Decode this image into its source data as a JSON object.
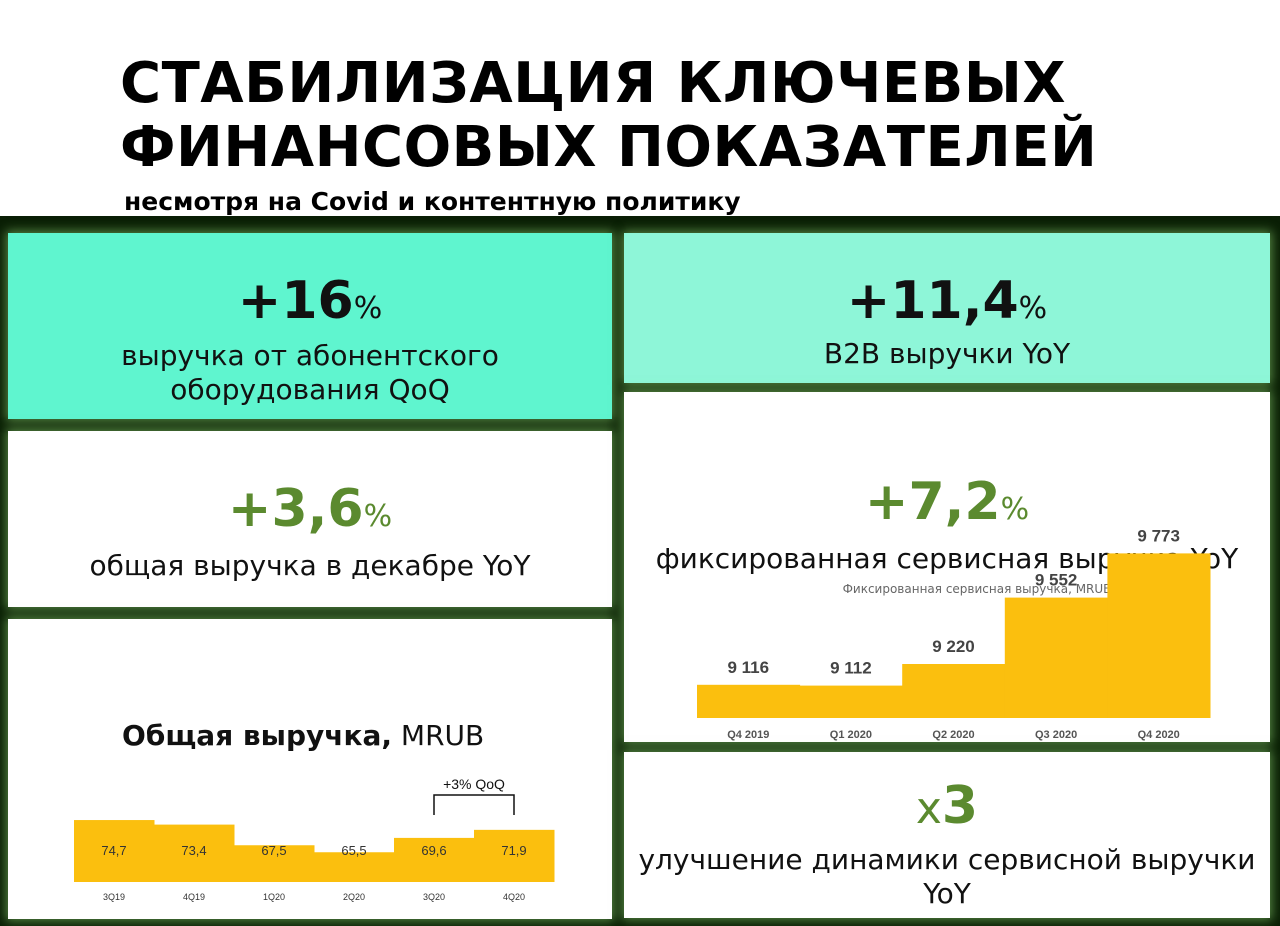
{
  "header": {
    "title_line1": "СТАБИЛИЗАЦИЯ КЛЮЧЕВЫХ",
    "title_line2": "ФИНАНСОВЫХ ПОКАЗАТЕЛЕЙ",
    "subtitle": "несмотря на Covid и контентную политику"
  },
  "cards": {
    "equipment": {
      "value": "+16",
      "unit": "%",
      "label_line1": "выручка от абонентского",
      "label_line2": "оборудования QoQ"
    },
    "b2b": {
      "value": "+11,4",
      "unit": "%",
      "label": "B2B выручки YoY"
    },
    "total_dec": {
      "value": "+3,6",
      "unit": "%",
      "label": "общая выручка в декабре YoY"
    },
    "fixed_service": {
      "value": "+7,2",
      "unit": "%",
      "label": "фиксированная сервисная выручка YoY"
    },
    "service_dynamics": {
      "value_prefix": "x",
      "value": "3",
      "label_line1": "улучшение динамики сервисной выручки",
      "label_line2": "YoY"
    }
  },
  "colors": {
    "bar": "#fbbf0e",
    "teal": "#5ff5cf",
    "teal_light": "#8ef6d8",
    "green_accent": "#5b8a2f",
    "frame": "#0a1f05"
  },
  "chart_data": [
    {
      "type": "bar",
      "title": "Фиксированная сервисная выручка, MRUB",
      "categories": [
        "Q4 2019",
        "Q1 2020",
        "Q2 2020",
        "Q3 2020",
        "Q4 2020"
      ],
      "values": [
        9116,
        9112,
        9220,
        9552,
        9773
      ],
      "labels": [
        "9 116",
        "9 112",
        "9 220",
        "9 552",
        "9 773"
      ]
    },
    {
      "type": "bar",
      "title_bold": "Общая выручка,",
      "title_rest": " MRUB",
      "categories": [
        "3Q19",
        "4Q19",
        "1Q20",
        "2Q20",
        "3Q20",
        "4Q20"
      ],
      "values": [
        74.7,
        73.4,
        67.5,
        65.5,
        69.6,
        71.9
      ],
      "labels": [
        "74,7",
        "73,4",
        "67,5",
        "65,5",
        "69,6",
        "71,9"
      ],
      "annotation": "+3% QoQ"
    }
  ]
}
